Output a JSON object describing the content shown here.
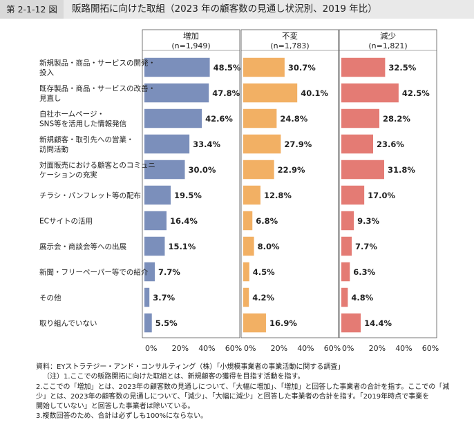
{
  "figure": {
    "label": "第 2-1-12 図",
    "title": "販路開拓に向けた取組（2023 年の顧客数の見通し状況別、2019 年比）"
  },
  "chart_data": {
    "type": "bar",
    "orientation": "horizontal",
    "categories": [
      [
        "新規製品・商品・サービスの開発・",
        "投入"
      ],
      [
        "既存製品・商品・サービスの改善・",
        "見直し"
      ],
      [
        "自社ホームページ・",
        "SNS等を活用した情報発信"
      ],
      [
        "新規顧客・取引先への営業・",
        "訪問活動"
      ],
      [
        "対面販売における顧客とのコミュニ",
        "ケーションの充実"
      ],
      [
        "チラシ・パンフレット等の配布"
      ],
      [
        "ECサイトの活用"
      ],
      [
        "展示会・商談会等への出展"
      ],
      [
        "新聞・フリーペーパー等での紹介"
      ],
      [
        "その他"
      ],
      [
        "取り組んでいない"
      ]
    ],
    "series": [
      {
        "name": "増加",
        "n": "(n=1,949)",
        "color": "#7b8fbb",
        "values": [
          48.5,
          47.8,
          42.6,
          33.4,
          30.0,
          19.5,
          16.4,
          15.1,
          7.7,
          3.7,
          5.5
        ],
        "labels": [
          "48.5%",
          "47.8%",
          "42.6%",
          "33.4%",
          "30.0%",
          "19.5%",
          "16.4%",
          "15.1%",
          "7.7%",
          "3.7%",
          "5.5%"
        ]
      },
      {
        "name": "不変",
        "n": "(n=1,783)",
        "color": "#f2b064",
        "values": [
          30.7,
          40.1,
          24.8,
          27.9,
          22.9,
          12.8,
          6.8,
          8.0,
          4.5,
          4.2,
          16.9
        ],
        "labels": [
          "30.7%",
          "40.1%",
          "24.8%",
          "27.9%",
          "22.9%",
          "12.8%",
          "6.8%",
          "8.0%",
          "4.5%",
          "4.2%",
          "16.9%"
        ]
      },
      {
        "name": "減少",
        "n": "(n=1,821)",
        "color": "#e47b74",
        "values": [
          32.5,
          42.5,
          28.2,
          23.6,
          31.8,
          17.0,
          9.3,
          7.7,
          6.3,
          4.8,
          14.4
        ],
        "labels": [
          "32.5%",
          "42.5%",
          "28.2%",
          "23.6%",
          "31.8%",
          "17.0%",
          "9.3%",
          "7.7%",
          "6.3%",
          "4.8%",
          "14.4%"
        ]
      }
    ],
    "xlim": [
      0,
      60
    ],
    "xticks": [
      0,
      20,
      40,
      60
    ],
    "xtick_labels": [
      "0%",
      "20%",
      "40%",
      "60%"
    ],
    "xlabel": "",
    "ylabel": ""
  },
  "notes": {
    "source": "資料：EYストラテジー・アンド・コンサルティング（株）「小規模事業者の事業活動に関する調査」",
    "note1": "（注）1.ここでの販路開拓に向けた取組とは、新規顧客の獲得を目指す活動を指す。",
    "note2a": "2.ここでの「増加」とは、2023年の顧客数の見通しについて、「大幅に増加」、「増加」と回答した事業者の合計を指す。ここでの「減",
    "note2b": "少」とは、2023年の顧客数の見通しについて、「減少」、「大幅に減少」と回答した事業者の合計を指す。「2019年時点で事業を",
    "note2c": "開始していない」と回答した事業者は除いている。",
    "note3": "3.複数回答のため、合計は必ずしも100%にならない。"
  }
}
